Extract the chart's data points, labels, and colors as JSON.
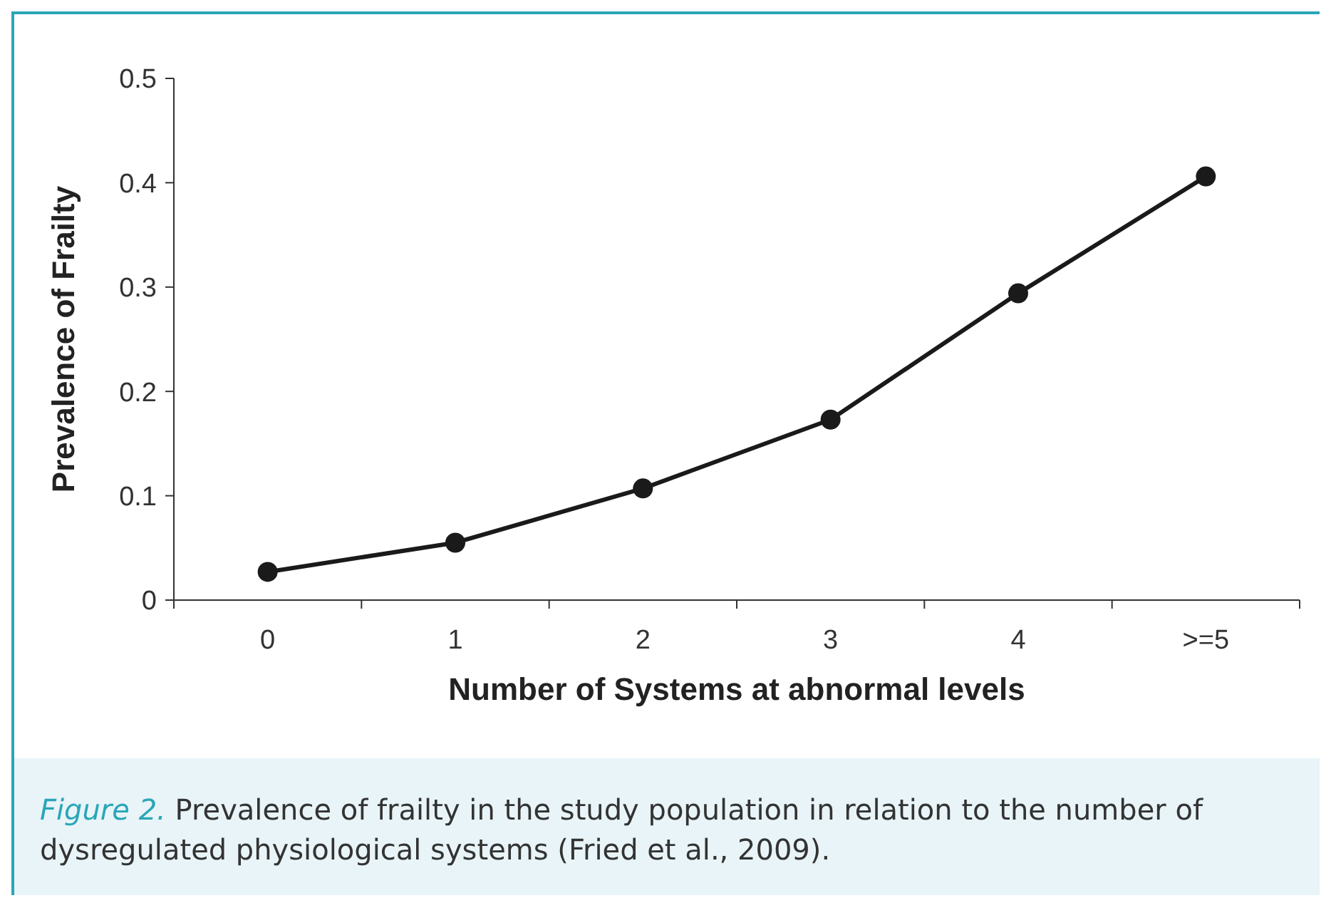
{
  "chart_data": {
    "type": "line",
    "xlabel": "Number of Systems at abnormal levels",
    "ylabel": "Prevalence of Frailty",
    "categories": [
      "0",
      "1",
      "2",
      "3",
      "4",
      ">=5"
    ],
    "series": [
      {
        "color": "#1a1a1a",
        "values": [
          0.027,
          0.055,
          0.107,
          0.173,
          0.294,
          0.406
        ]
      }
    ],
    "ylim": [
      0,
      0.5
    ],
    "yticks": [
      0,
      0.1,
      0.2,
      0.3,
      0.4,
      0.5
    ],
    "marker": "circle",
    "line_style": "solid",
    "grid": false,
    "annotations": [
      "Figure 2.",
      "Prevalence of frailty in the study population in relation to the number of dysregulated physiological systems (Fried et al., 2009)."
    ]
  }
}
